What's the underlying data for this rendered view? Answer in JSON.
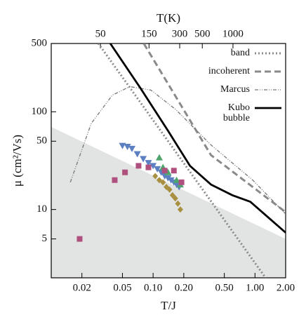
{
  "chart_data": {
    "type": "line",
    "xlabel": "T/J",
    "x2label": "T(K)",
    "ylabel": "μ (cm²/Vs)",
    "xscale": "log",
    "yscale": "log",
    "xlim": [
      0.01,
      2.0
    ],
    "x2lim": [
      16.45,
      3290
    ],
    "ylim": [
      2,
      500
    ],
    "xticks": [
      0.02,
      0.05,
      {
        "value": 0.1,
        "label": "0.10"
      },
      {
        "value": 0.2,
        "label": "0.20"
      },
      {
        "value": 0.5,
        "label": "0.50"
      },
      {
        "value": 1.0,
        "label": "1.00"
      },
      {
        "value": 2.0,
        "label": "2.00"
      }
    ],
    "x2ticks": [
      50,
      150,
      300,
      500,
      1000
    ],
    "yticks": [
      5,
      10,
      50,
      100,
      500
    ],
    "legend": "upper right",
    "region": {
      "color": "#e2e3e3",
      "x": [
        0.01,
        2.0
      ],
      "values": [
        70,
        5
      ]
    },
    "series": [
      {
        "name": "band",
        "color": "#8a8a8a",
        "style": "dotted",
        "x": [
          0.029,
          0.1,
          0.3,
          1.27
        ],
        "values": [
          500,
          82,
          16.5,
          2
        ]
      },
      {
        "name": "incoherent",
        "color": "#8a8a8a",
        "style": "dashed",
        "x": [
          0.081,
          0.37,
          2.0
        ],
        "values": [
          500,
          36,
          9.4
        ]
      },
      {
        "name": "Marcus",
        "color": "#777777",
        "style": "dashdot",
        "x": [
          0.0154,
          0.0247,
          0.0398,
          0.059,
          0.095,
          0.166,
          0.368,
          0.95,
          2.0
        ],
        "values": [
          19,
          76,
          148,
          181,
          167,
          106,
          46,
          20,
          9
        ]
      },
      {
        "name": "Kubo bubble",
        "color": "#000000",
        "style": "solid",
        "x": [
          0.038,
          0.075,
          0.14,
          0.23,
          0.37,
          0.6,
          0.9,
          2.0
        ],
        "values": [
          500,
          175,
          64,
          28,
          18,
          14,
          12,
          5.8
        ]
      },
      {
        "marker": "triangle-down",
        "color": "#5b7fc0",
        "x": [
          0.05,
          0.056,
          0.062,
          0.07,
          0.08,
          0.09,
          0.1,
          0.11,
          0.12,
          0.13,
          0.14,
          0.15,
          0.16,
          0.17,
          0.18
        ],
        "values": [
          45,
          44,
          42,
          37,
          33,
          30,
          28,
          26,
          24,
          22,
          21,
          20,
          19,
          18,
          17
        ]
      },
      {
        "marker": "triangle-up",
        "color": "#4fa46c",
        "x": [
          0.115,
          0.125,
          0.14,
          0.17,
          0.185
        ],
        "values": [
          34,
          27,
          24,
          20,
          18
        ]
      },
      {
        "marker": "square",
        "color": "#b0507f",
        "x": [
          0.019,
          0.042,
          0.053,
          0.072,
          0.09,
          0.13,
          0.16,
          0.19
        ],
        "values": [
          5,
          20,
          24,
          28,
          27,
          25,
          25,
          19
        ]
      },
      {
        "marker": "diamond",
        "color": "#a89040",
        "x": [
          0.105,
          0.115,
          0.125,
          0.135,
          0.145,
          0.155,
          0.165,
          0.175,
          0.185
        ],
        "values": [
          22,
          20,
          19,
          17,
          16,
          14,
          13,
          11.5,
          10
        ]
      }
    ]
  }
}
